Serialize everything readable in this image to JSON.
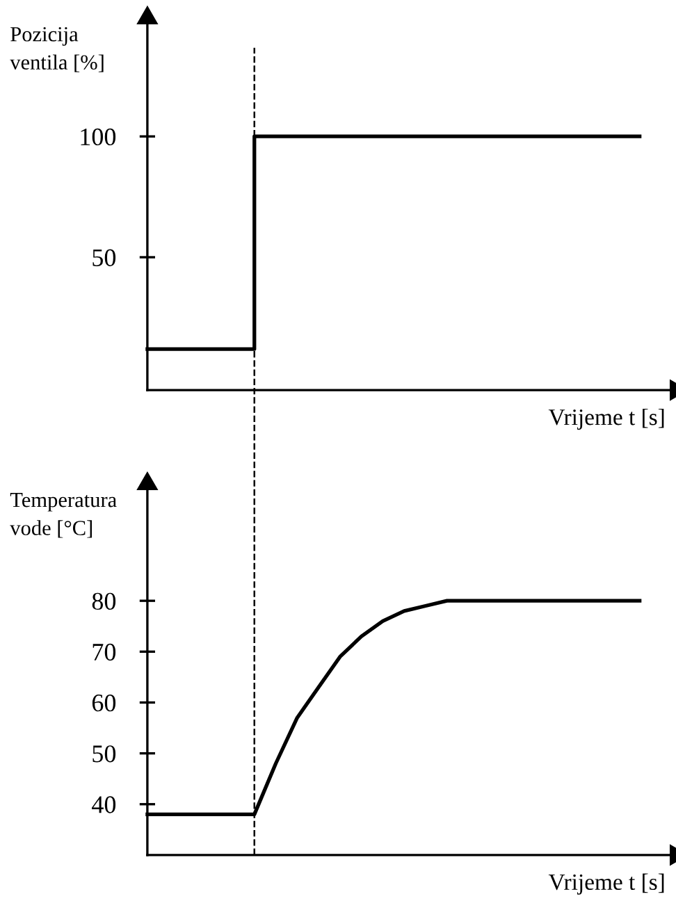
{
  "chart_data": [
    {
      "type": "step",
      "ylabel": "Pozicija\nventila [%]",
      "xlabel": "Vrijeme t [s]",
      "categories": [
        null,
        null,
        null,
        null,
        null,
        null,
        null,
        null,
        null,
        null,
        null,
        null,
        null,
        null,
        null,
        null,
        null,
        null,
        null,
        null,
        null,
        null,
        null,
        null
      ],
      "series": [
        {
          "color": "#000000",
          "values": [
            12,
            12,
            12,
            12,
            12,
            100,
            100,
            100,
            100,
            100,
            100,
            100,
            100,
            100,
            100,
            100,
            100,
            100,
            100,
            100,
            100,
            100,
            100,
            100
          ]
        }
      ],
      "ylim": [
        -5,
        149
      ],
      "yticks": [
        50,
        100
      ],
      "grid": false,
      "legend": false,
      "marker": "none",
      "line_style": "solid"
    },
    {
      "type": "line",
      "ylabel": "Temperatura\nvode [°C]",
      "xlabel": "Vrijeme t [s]",
      "categories": [
        null,
        null,
        null,
        null,
        null,
        null,
        null,
        null,
        null,
        null,
        null,
        null,
        null,
        null,
        null,
        null,
        null,
        null,
        null,
        null,
        null,
        null,
        null,
        null
      ],
      "series": [
        {
          "color": "#000000",
          "values": [
            38,
            38,
            38,
            38,
            38,
            38,
            48,
            57,
            63,
            69,
            73,
            76,
            78,
            79,
            80,
            80,
            80,
            80,
            80,
            80,
            80,
            80,
            80,
            80
          ]
        }
      ],
      "ylim": [
        30,
        103
      ],
      "yticks": [
        40,
        50,
        60,
        70,
        80
      ],
      "grid": false,
      "legend": false,
      "marker": "none",
      "line_style": "solid"
    }
  ]
}
